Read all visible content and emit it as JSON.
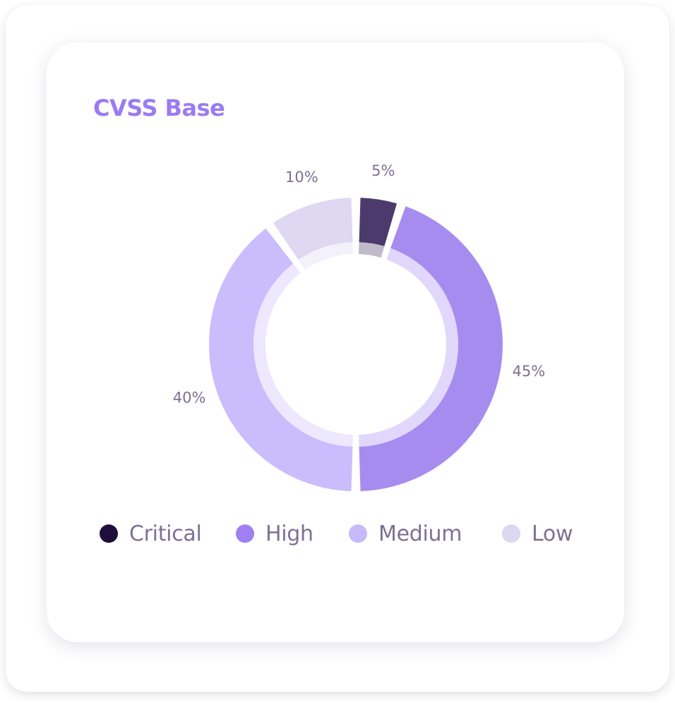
{
  "card": {
    "title": "CVSS Base"
  },
  "chart_data": {
    "type": "pie",
    "style": "donut",
    "title": "CVSS Base",
    "categories": [
      "Critical",
      "High",
      "Medium",
      "Low"
    ],
    "values": [
      5,
      45,
      40,
      10
    ],
    "value_labels": [
      "5%",
      "45%",
      "40%",
      "10%"
    ],
    "colors": [
      "#4d3a6d",
      "#a78cf0",
      "#cbbcfd",
      "#ded8f2"
    ],
    "legend": {
      "placement": "bottom",
      "dot_colors": [
        "#1f0d3b",
        "#9f7ff2",
        "#c8b9fb",
        "#dcd6f0"
      ]
    }
  }
}
